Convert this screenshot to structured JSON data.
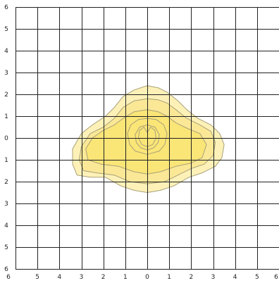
{
  "chart_data": {
    "type": "contour",
    "title": "",
    "xlabel": "",
    "ylabel": "",
    "grid": true,
    "legend": "none",
    "xlim": [
      -6,
      6
    ],
    "ylim": [
      -6,
      6
    ],
    "x_tick_labels": [
      "6",
      "5",
      "4",
      "3",
      "2",
      "1",
      "0",
      "1",
      "2",
      "3",
      "4",
      "5",
      "6"
    ],
    "y_tick_labels": [
      "6",
      "5",
      "4",
      "3",
      "2",
      "1",
      "0",
      "1",
      "2",
      "3",
      "4",
      "5",
      "6"
    ],
    "colors": {
      "grid": "#222222",
      "fill_light": "#fdf1b8",
      "fill_mid": "#fbe896",
      "fill_core": "#fae577",
      "contour_stroke": "#a8a178"
    },
    "contours": [
      {
        "level": 1,
        "fill": "fill_light",
        "points": [
          [
            0,
            2.4
          ],
          [
            0.5,
            2.3
          ],
          [
            0.9,
            2.1
          ],
          [
            1.4,
            1.7
          ],
          [
            1.8,
            1.3
          ],
          [
            2.3,
            0.9
          ],
          [
            2.9,
            0.6
          ],
          [
            3.3,
            0.2
          ],
          [
            3.5,
            -0.3
          ],
          [
            3.4,
            -0.9
          ],
          [
            3.1,
            -1.3
          ],
          [
            2.5,
            -1.6
          ],
          [
            1.9,
            -1.8
          ],
          [
            1.2,
            -2.2
          ],
          [
            0.6,
            -2.4
          ],
          [
            0,
            -2.5
          ],
          [
            -0.6,
            -2.4
          ],
          [
            -1.2,
            -2.2
          ],
          [
            -1.9,
            -1.8
          ],
          [
            -2.6,
            -1.8
          ],
          [
            -3.2,
            -1.7
          ],
          [
            -3.4,
            -1.2
          ],
          [
            -3.4,
            -0.5
          ],
          [
            -3.0,
            0.2
          ],
          [
            -2.5,
            0.6
          ],
          [
            -1.9,
            1.0
          ],
          [
            -1.5,
            1.4
          ],
          [
            -1.1,
            1.9
          ],
          [
            -0.6,
            2.2
          ]
        ]
      },
      {
        "level": 2,
        "fill": "fill_mid",
        "points": [
          [
            0,
            1.8
          ],
          [
            0.5,
            1.75
          ],
          [
            0.9,
            1.6
          ],
          [
            1.3,
            1.3
          ],
          [
            1.8,
            0.9
          ],
          [
            2.4,
            0.6
          ],
          [
            2.9,
            0.3
          ],
          [
            3.1,
            -0.2
          ],
          [
            3.0,
            -0.8
          ],
          [
            2.6,
            -1.2
          ],
          [
            2.0,
            -1.4
          ],
          [
            1.4,
            -1.7
          ],
          [
            0.8,
            -2.0
          ],
          [
            0,
            -2.1
          ],
          [
            -0.8,
            -2.0
          ],
          [
            -1.5,
            -1.7
          ],
          [
            -2.3,
            -1.6
          ],
          [
            -2.9,
            -1.5
          ],
          [
            -3.1,
            -1.0
          ],
          [
            -3.0,
            -0.4
          ],
          [
            -2.6,
            0.2
          ],
          [
            -2.0,
            0.5
          ],
          [
            -1.5,
            0.9
          ],
          [
            -1.1,
            1.4
          ],
          [
            -0.6,
            1.7
          ]
        ]
      },
      {
        "level": 3,
        "fill": "fill_core",
        "points": [
          [
            0,
            1.3
          ],
          [
            0.5,
            1.2
          ],
          [
            0.9,
            1.0
          ],
          [
            1.3,
            0.7
          ],
          [
            1.8,
            0.45
          ],
          [
            2.4,
            0.2
          ],
          [
            2.7,
            -0.3
          ],
          [
            2.5,
            -0.9
          ],
          [
            2.0,
            -1.15
          ],
          [
            1.3,
            -1.3
          ],
          [
            0.6,
            -1.55
          ],
          [
            0,
            -1.65
          ],
          [
            -0.6,
            -1.55
          ],
          [
            -1.3,
            -1.3
          ],
          [
            -2.1,
            -1.2
          ],
          [
            -2.7,
            -1.0
          ],
          [
            -2.8,
            -0.5
          ],
          [
            -2.5,
            0.0
          ],
          [
            -2.0,
            0.35
          ],
          [
            -1.5,
            0.6
          ],
          [
            -1.1,
            0.9
          ],
          [
            -0.6,
            1.2
          ]
        ]
      },
      {
        "level": 4,
        "fill": "fill_core",
        "points": [
          [
            0,
            0.9
          ],
          [
            0.4,
            0.85
          ],
          [
            0.75,
            0.6
          ],
          [
            0.9,
            0.2
          ],
          [
            0.8,
            -0.3
          ],
          [
            0.55,
            -0.6
          ],
          [
            0,
            -0.75
          ],
          [
            -0.55,
            -0.6
          ],
          [
            -0.8,
            -0.3
          ],
          [
            -0.9,
            0.2
          ],
          [
            -0.75,
            0.6
          ],
          [
            -0.4,
            0.85
          ]
        ]
      },
      {
        "level": 5,
        "fill": "fill_core",
        "points": [
          [
            0,
            0.6
          ],
          [
            0.35,
            0.5
          ],
          [
            0.55,
            0.15
          ],
          [
            0.5,
            -0.2
          ],
          [
            0.3,
            -0.45
          ],
          [
            0,
            -0.55
          ],
          [
            -0.3,
            -0.45
          ],
          [
            -0.5,
            -0.2
          ],
          [
            -0.55,
            0.15
          ],
          [
            -0.35,
            0.5
          ]
        ]
      },
      {
        "level": 6,
        "fill": "fill_core",
        "points": [
          [
            0,
            0.25
          ],
          [
            0.15,
            0.5
          ],
          [
            0.35,
            0.35
          ],
          [
            0.4,
            0.0
          ],
          [
            0.25,
            -0.3
          ],
          [
            0,
            -0.4
          ],
          [
            -0.25,
            -0.3
          ],
          [
            -0.4,
            0.0
          ],
          [
            -0.35,
            0.35
          ],
          [
            -0.15,
            0.5
          ]
        ]
      }
    ]
  }
}
